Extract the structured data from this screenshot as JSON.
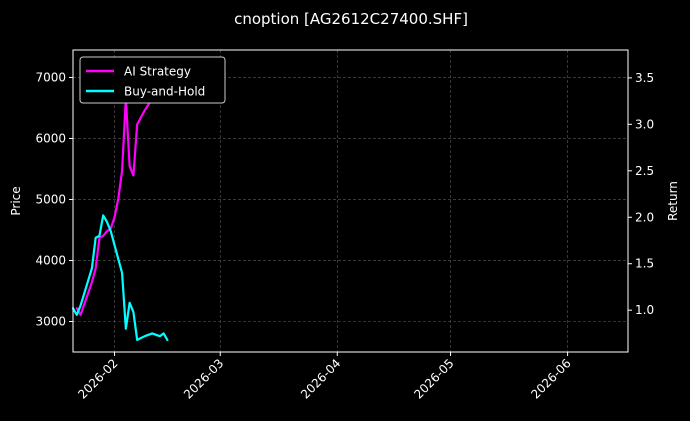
{
  "chart_data": {
    "type": "line",
    "title": "cnoption [AG2612C27400.SHF]",
    "ylabel_left": "Price",
    "ylabel_right": "Return",
    "xlim": [
      "2026-01-21",
      "2026-06-17"
    ],
    "ylim_left": [
      2500,
      7450
    ],
    "ylim_right": [
      0.55,
      3.8
    ],
    "x_ticks": [
      "2026-02-01",
      "2026-03-01",
      "2026-04-01",
      "2026-05-01",
      "2026-06-01"
    ],
    "x_tick_labels": [
      "2026-02",
      "2026-03",
      "2026-04",
      "2026-05",
      "2026-06"
    ],
    "y_ticks_left": [
      3000,
      4000,
      5000,
      6000,
      7000
    ],
    "y_tick_labels_left": [
      "3000",
      "4000",
      "5000",
      "6000",
      "7000"
    ],
    "y_ticks_right": [
      1.0,
      1.5,
      2.0,
      2.5,
      3.0,
      3.5
    ],
    "y_tick_labels_right": [
      "1.0",
      "1.5",
      "2.0",
      "2.5",
      "3.0",
      "3.5"
    ],
    "grid": true,
    "legend_position": "top-left",
    "background": "#000000",
    "series": [
      {
        "name": "AI Strategy",
        "axis": "right",
        "color": "#ff00ff",
        "points": [
          [
            "2026-01-22",
            1.02
          ],
          [
            "2026-01-23",
            0.95
          ],
          [
            "2026-01-26",
            1.3
          ],
          [
            "2026-01-27",
            1.45
          ],
          [
            "2026-01-28",
            1.78
          ],
          [
            "2026-01-29",
            1.8
          ],
          [
            "2026-01-30",
            1.85
          ],
          [
            "2026-01-31",
            1.88
          ],
          [
            "2026-02-01",
            2.0
          ],
          [
            "2026-02-02",
            2.2
          ],
          [
            "2026-02-03",
            2.5
          ],
          [
            "2026-02-04",
            3.28
          ],
          [
            "2026-02-05",
            2.55
          ],
          [
            "2026-02-06",
            2.45
          ],
          [
            "2026-02-07",
            3.0
          ],
          [
            "2026-02-09",
            3.15
          ],
          [
            "2026-02-11",
            3.28
          ],
          [
            "2026-02-12",
            3.25
          ],
          [
            "2026-02-13",
            3.28
          ],
          [
            "2026-02-14",
            3.45
          ],
          [
            "2026-02-15",
            3.72
          ]
        ]
      },
      {
        "name": "Buy-and-Hold",
        "axis": "right",
        "color": "#00ffff",
        "points": [
          [
            "2026-01-21",
            1.02
          ],
          [
            "2026-01-22",
            0.95
          ],
          [
            "2026-01-23",
            1.05
          ],
          [
            "2026-01-26",
            1.45
          ],
          [
            "2026-01-27",
            1.78
          ],
          [
            "2026-01-28",
            1.8
          ],
          [
            "2026-01-29",
            2.02
          ],
          [
            "2026-01-30",
            1.95
          ],
          [
            "2026-01-31",
            1.85
          ],
          [
            "2026-02-01",
            1.7
          ],
          [
            "2026-02-03",
            1.4
          ],
          [
            "2026-02-04",
            0.8
          ],
          [
            "2026-02-05",
            1.08
          ],
          [
            "2026-02-06",
            0.98
          ],
          [
            "2026-02-07",
            0.68
          ],
          [
            "2026-02-09",
            0.72
          ],
          [
            "2026-02-11",
            0.75
          ],
          [
            "2026-02-13",
            0.72
          ],
          [
            "2026-02-14",
            0.75
          ],
          [
            "2026-02-15",
            0.68
          ]
        ]
      }
    ]
  }
}
